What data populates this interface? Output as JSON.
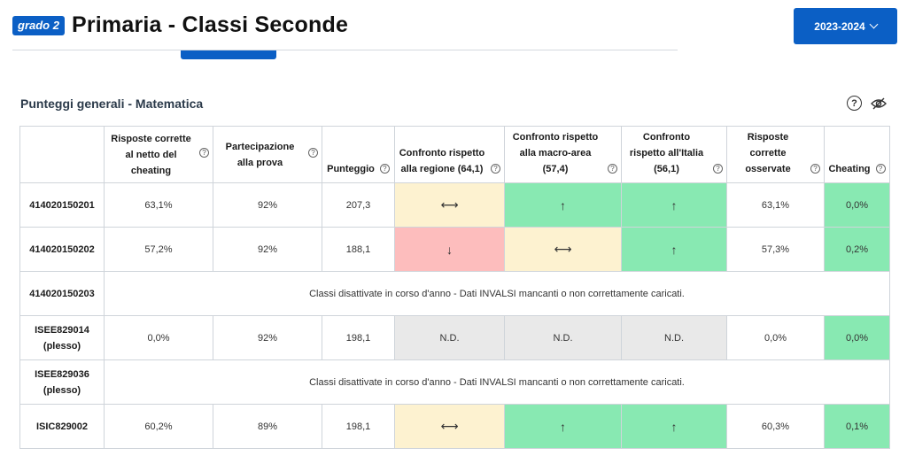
{
  "header": {
    "badge": "grado 2",
    "title": "Primaria - Classi Seconde"
  },
  "year_select": {
    "value": "2023-2024"
  },
  "section": {
    "title": "Punteggi generali - Matematica"
  },
  "icons": {
    "help": "help-circle-icon",
    "visibility": "eye-slash-icon"
  },
  "colors": {
    "primary": "#0b5fc5",
    "green": "#88e9b2",
    "yellow": "#fdf2d0",
    "red": "#fdbdbd",
    "gray": "#e9e9e9"
  },
  "table": {
    "columns": [
      "",
      "Risposte corrette al netto del cheating",
      "Partecipazione alla prova",
      "Punteggio",
      "Confronto rispetto alla regione (64,1)",
      "Confronto rispetto alla macro-area (57,4)",
      "Confronto rispetto all'Italia (56,1)",
      "Risposte corrette osservate",
      "Cheating"
    ],
    "rows": [
      {
        "id": "414020150201",
        "cells": [
          "63,1%",
          "92%",
          "207,3",
          "⟷",
          "↑",
          "↑",
          "63,1%",
          "0,0%"
        ]
      },
      {
        "id": "414020150202",
        "cells": [
          "57,2%",
          "92%",
          "188,1",
          "↓",
          "⟷",
          "↑",
          "57,3%",
          "0,2%"
        ]
      },
      {
        "id": "414020150203",
        "note": "Classi disattivate in corso d'anno - Dati INVALSI mancanti o non correttamente caricati."
      },
      {
        "id": "ISEE829014 (plesso)",
        "cells": [
          "0,0%",
          "92%",
          "198,1",
          "N.D.",
          "N.D.",
          "N.D.",
          "0,0%",
          "0,0%"
        ]
      },
      {
        "id": "ISEE829036 (plesso)",
        "note": "Classi disattivate in corso d'anno - Dati INVALSI mancanti o non correttamente caricati."
      },
      {
        "id": "ISIC829002",
        "cells": [
          "60,2%",
          "89%",
          "198,1",
          "⟷",
          "↑",
          "↑",
          "60,3%",
          "0,1%"
        ]
      }
    ]
  }
}
